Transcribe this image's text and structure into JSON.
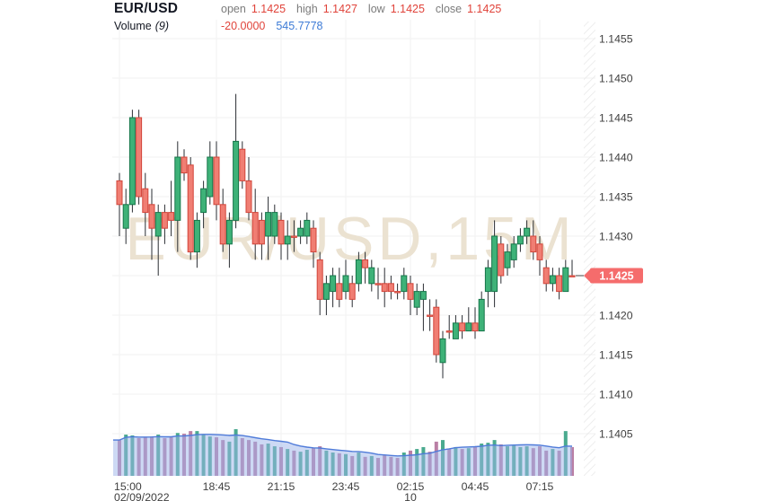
{
  "header": {
    "symbol": "EUR/USD",
    "labels": {
      "open": "open",
      "high": "high",
      "low": "low",
      "close": "close"
    },
    "open": "1.1425",
    "high": "1.1427",
    "low": "1.1425",
    "close": "1.1425",
    "indicator": "Volume",
    "indicator_param": "(9)",
    "indicator_value_1": "-20.0000",
    "indicator_value_2": "545.7778"
  },
  "watermark": "EUR/USD,15M",
  "colors": {
    "up_fill": "#3eb278",
    "up_stroke": "#17754a",
    "down_fill": "#f07e73",
    "down_stroke": "#d2453a",
    "wick": "#2a2e33",
    "vol_up": "#36a183",
    "vol_down": "#b3719b",
    "ma_line": "#4f7bd9",
    "ma_fill": "rgba(156,180,233,0.5)",
    "badge_bg": "#f56c6c",
    "badge_text": "#ffffff",
    "grid": "#f2f2f2",
    "axis_text": "#3f3f3f",
    "watermark_color": "#ebe2d1",
    "hatch": "#e6e6e6",
    "value_red": "#e0433a",
    "value_blue": "#3d7bd6"
  },
  "chart_data": {
    "type": "candlestick",
    "symbol": "EUR/USD",
    "interval": "15M",
    "legend_note": "Volume (9) overlay with moving-average area",
    "grid": true,
    "ylim": [
      1.1405,
      1.1455
    ],
    "last_price": "1.1425",
    "last_price_value": 1.1425,
    "y_ticks": [
      {
        "value": 1.1455,
        "label": "1.1455"
      },
      {
        "value": 1.145,
        "label": "1.1450"
      },
      {
        "value": 1.1445,
        "label": "1.1445"
      },
      {
        "value": 1.144,
        "label": "1.1440"
      },
      {
        "value": 1.1435,
        "label": "1.1435"
      },
      {
        "value": 1.143,
        "label": "1.1430"
      },
      {
        "value": 1.1425,
        "label": "1.1425"
      },
      {
        "value": 1.142,
        "label": "1.1420"
      },
      {
        "value": 1.1415,
        "label": "1.1415"
      },
      {
        "value": 1.141,
        "label": "1.1410"
      },
      {
        "value": 1.1405,
        "label": "1.1405"
      }
    ],
    "x_ticks": [
      {
        "index": 0,
        "label": "15:00",
        "sub": "02/09/2022",
        "align": "start"
      },
      {
        "index": 15,
        "label": "18:45",
        "sub": "",
        "align": "middle"
      },
      {
        "index": 25,
        "label": "21:15",
        "sub": "",
        "align": "middle"
      },
      {
        "index": 35,
        "label": "23:45",
        "sub": "",
        "align": "middle"
      },
      {
        "index": 45,
        "label": "02:15",
        "sub": "10",
        "align": "middle"
      },
      {
        "index": 55,
        "label": "04:45",
        "sub": "",
        "align": "middle"
      },
      {
        "index": 65,
        "label": "07:15",
        "sub": "",
        "align": "middle"
      }
    ],
    "candles": [
      {
        "t": "15:00",
        "o": 1.1437,
        "h": 1.1438,
        "l": 1.143,
        "c": 1.1434,
        "v": 660
      },
      {
        "t": "15:15",
        "o": 1.1431,
        "h": 1.1436,
        "l": 1.1429,
        "c": 1.1434,
        "v": 760
      },
      {
        "t": "15:30",
        "o": 1.1434,
        "h": 1.1446,
        "l": 1.1433,
        "c": 1.1445,
        "v": 745
      },
      {
        "t": "15:45",
        "o": 1.1445,
        "h": 1.1446,
        "l": 1.1434,
        "c": 1.1435,
        "v": 695
      },
      {
        "t": "16:00",
        "o": 1.1436,
        "h": 1.1438,
        "l": 1.143,
        "c": 1.1433,
        "v": 710
      },
      {
        "t": "16:15",
        "o": 1.1434,
        "h": 1.1436,
        "l": 1.1427,
        "c": 1.1431,
        "v": 725
      },
      {
        "t": "16:30",
        "o": 1.143,
        "h": 1.1434,
        "l": 1.1425,
        "c": 1.1433,
        "v": 760
      },
      {
        "t": "16:45",
        "o": 1.1433,
        "h": 1.1434,
        "l": 1.1429,
        "c": 1.1431,
        "v": 695
      },
      {
        "t": "17:00",
        "o": 1.1433,
        "h": 1.1437,
        "l": 1.143,
        "c": 1.1432,
        "v": 725
      },
      {
        "t": "17:15",
        "o": 1.1432,
        "h": 1.1442,
        "l": 1.1428,
        "c": 1.144,
        "v": 790
      },
      {
        "t": "17:30",
        "o": 1.144,
        "h": 1.1441,
        "l": 1.1437,
        "c": 1.1438,
        "v": 775
      },
      {
        "t": "17:45",
        "o": 1.1439,
        "h": 1.144,
        "l": 1.1427,
        "c": 1.1428,
        "v": 825
      },
      {
        "t": "18:00",
        "o": 1.1428,
        "h": 1.1433,
        "l": 1.1426,
        "c": 1.1432,
        "v": 825
      },
      {
        "t": "18:15",
        "o": 1.1433,
        "h": 1.1437,
        "l": 1.1431,
        "c": 1.1436,
        "v": 760
      },
      {
        "t": "18:30",
        "o": 1.1435,
        "h": 1.1442,
        "l": 1.1434,
        "c": 1.144,
        "v": 725
      },
      {
        "t": "18:45",
        "o": 1.144,
        "h": 1.1442,
        "l": 1.1432,
        "c": 1.1434,
        "v": 710
      },
      {
        "t": "19:00",
        "o": 1.1434,
        "h": 1.1436,
        "l": 1.1428,
        "c": 1.1429,
        "v": 660
      },
      {
        "t": "19:15",
        "o": 1.1429,
        "h": 1.1433,
        "l": 1.1426,
        "c": 1.1432,
        "v": 630
      },
      {
        "t": "19:30",
        "o": 1.1432,
        "h": 1.1448,
        "l": 1.1431,
        "c": 1.1442,
        "v": 860
      },
      {
        "t": "19:45",
        "o": 1.1441,
        "h": 1.1442,
        "l": 1.1436,
        "c": 1.1437,
        "v": 695
      },
      {
        "t": "20:00",
        "o": 1.1437,
        "h": 1.144,
        "l": 1.1432,
        "c": 1.1433,
        "v": 660
      },
      {
        "t": "20:15",
        "o": 1.1433,
        "h": 1.1436,
        "l": 1.1427,
        "c": 1.1429,
        "v": 630
      },
      {
        "t": "20:30",
        "o": 1.1432,
        "h": 1.1433,
        "l": 1.1427,
        "c": 1.1429,
        "v": 580
      },
      {
        "t": "20:45",
        "o": 1.143,
        "h": 1.1435,
        "l": 1.1427,
        "c": 1.1433,
        "v": 595
      },
      {
        "t": "21:00",
        "o": 1.143,
        "h": 1.1434,
        "l": 1.1429,
        "c": 1.1433,
        "v": 545
      },
      {
        "t": "21:15",
        "o": 1.1432,
        "h": 1.1433,
        "l": 1.1427,
        "c": 1.1429,
        "v": 530
      },
      {
        "t": "21:30",
        "o": 1.1429,
        "h": 1.1432,
        "l": 1.1427,
        "c": 1.143,
        "v": 495
      },
      {
        "t": "21:45",
        "o": 1.143,
        "h": 1.1432,
        "l": 1.1428,
        "c": 1.143,
        "v": 465
      },
      {
        "t": "22:00",
        "o": 1.143,
        "h": 1.1432,
        "l": 1.1429,
        "c": 1.1431,
        "v": 445
      },
      {
        "t": "22:15",
        "o": 1.143,
        "h": 1.1433,
        "l": 1.1429,
        "c": 1.1432,
        "v": 480
      },
      {
        "t": "22:30",
        "o": 1.1431,
        "h": 1.1432,
        "l": 1.1426,
        "c": 1.1428,
        "v": 510
      },
      {
        "t": "22:45",
        "o": 1.1427,
        "h": 1.1428,
        "l": 1.142,
        "c": 1.1422,
        "v": 545
      },
      {
        "t": "23:00",
        "o": 1.1422,
        "h": 1.1425,
        "l": 1.142,
        "c": 1.1424,
        "v": 465
      },
      {
        "t": "23:15",
        "o": 1.1423,
        "h": 1.1426,
        "l": 1.1421,
        "c": 1.1425,
        "v": 430
      },
      {
        "t": "23:30",
        "o": 1.1424,
        "h": 1.1426,
        "l": 1.1421,
        "c": 1.1422,
        "v": 415
      },
      {
        "t": "23:45",
        "o": 1.1423,
        "h": 1.1427,
        "l": 1.1422,
        "c": 1.1425,
        "v": 400
      },
      {
        "t": "00:00",
        "o": 1.1424,
        "h": 1.1425,
        "l": 1.1421,
        "c": 1.1422,
        "v": 365
      },
      {
        "t": "00:15",
        "o": 1.1424,
        "h": 1.1428,
        "l": 1.1423,
        "c": 1.1427,
        "v": 430
      },
      {
        "t": "00:30",
        "o": 1.1427,
        "h": 1.1428,
        "l": 1.1424,
        "c": 1.1426,
        "v": 350
      },
      {
        "t": "00:45",
        "o": 1.1424,
        "h": 1.1427,
        "l": 1.1423,
        "c": 1.1426,
        "v": 365
      },
      {
        "t": "01:00",
        "o": 1.1424,
        "h": 1.1426,
        "l": 1.1422,
        "c": 1.1424,
        "v": 330
      },
      {
        "t": "01:15",
        "o": 1.1424,
        "h": 1.1426,
        "l": 1.1421,
        "c": 1.1423,
        "v": 380
      },
      {
        "t": "01:30",
        "o": 1.1424,
        "h": 1.1425,
        "l": 1.1422,
        "c": 1.1423,
        "v": 350
      },
      {
        "t": "01:45",
        "o": 1.1423,
        "h": 1.1424,
        "l": 1.1422,
        "c": 1.1423,
        "v": 330
      },
      {
        "t": "02:00",
        "o": 1.1423,
        "h": 1.1426,
        "l": 1.1422,
        "c": 1.1425,
        "v": 430
      },
      {
        "t": "02:15",
        "o": 1.1424,
        "h": 1.1425,
        "l": 1.142,
        "c": 1.1422,
        "v": 465
      },
      {
        "t": "02:30",
        "o": 1.1421,
        "h": 1.1424,
        "l": 1.142,
        "c": 1.1423,
        "v": 495
      },
      {
        "t": "02:45",
        "o": 1.1422,
        "h": 1.1424,
        "l": 1.1418,
        "c": 1.1423,
        "v": 530
      },
      {
        "t": "03:00",
        "o": 1.142,
        "h": 1.1422,
        "l": 1.1418,
        "c": 1.142,
        "v": 445
      },
      {
        "t": "03:15",
        "o": 1.1421,
        "h": 1.1422,
        "l": 1.1414,
        "c": 1.1415,
        "v": 630
      },
      {
        "t": "03:30",
        "o": 1.1414,
        "h": 1.1418,
        "l": 1.1412,
        "c": 1.1417,
        "v": 660
      },
      {
        "t": "03:45",
        "o": 1.1418,
        "h": 1.142,
        "l": 1.1417,
        "c": 1.1418,
        "v": 495
      },
      {
        "t": "04:00",
        "o": 1.1417,
        "h": 1.142,
        "l": 1.1417,
        "c": 1.1419,
        "v": 530
      },
      {
        "t": "04:15",
        "o": 1.1419,
        "h": 1.142,
        "l": 1.1417,
        "c": 1.1418,
        "v": 495
      },
      {
        "t": "04:30",
        "o": 1.1418,
        "h": 1.1421,
        "l": 1.1418,
        "c": 1.1419,
        "v": 510
      },
      {
        "t": "04:45",
        "o": 1.1419,
        "h": 1.1421,
        "l": 1.1417,
        "c": 1.1418,
        "v": 545
      },
      {
        "t": "05:00",
        "o": 1.1418,
        "h": 1.1423,
        "l": 1.1418,
        "c": 1.1422,
        "v": 595
      },
      {
        "t": "05:15",
        "o": 1.1423,
        "h": 1.1427,
        "l": 1.1421,
        "c": 1.1426,
        "v": 610
      },
      {
        "t": "05:30",
        "o": 1.1423,
        "h": 1.1432,
        "l": 1.1421,
        "c": 1.143,
        "v": 660
      },
      {
        "t": "05:45",
        "o": 1.1429,
        "h": 1.143,
        "l": 1.1424,
        "c": 1.1425,
        "v": 580
      },
      {
        "t": "06:00",
        "o": 1.1426,
        "h": 1.1429,
        "l": 1.1425,
        "c": 1.1428,
        "v": 545
      },
      {
        "t": "06:15",
        "o": 1.1427,
        "h": 1.143,
        "l": 1.1426,
        "c": 1.1429,
        "v": 560
      },
      {
        "t": "06:30",
        "o": 1.1429,
        "h": 1.1431,
        "l": 1.1428,
        "c": 1.143,
        "v": 530
      },
      {
        "t": "06:45",
        "o": 1.143,
        "h": 1.1432,
        "l": 1.1429,
        "c": 1.1431,
        "v": 545
      },
      {
        "t": "07:00",
        "o": 1.143,
        "h": 1.1432,
        "l": 1.1427,
        "c": 1.1428,
        "v": 510
      },
      {
        "t": "07:15",
        "o": 1.1429,
        "h": 1.143,
        "l": 1.1425,
        "c": 1.1427,
        "v": 545
      },
      {
        "t": "07:30",
        "o": 1.1426,
        "h": 1.1427,
        "l": 1.1423,
        "c": 1.1424,
        "v": 465
      },
      {
        "t": "07:45",
        "o": 1.1424,
        "h": 1.1426,
        "l": 1.1423,
        "c": 1.1425,
        "v": 495
      },
      {
        "t": "08:00",
        "o": 1.1425,
        "h": 1.1426,
        "l": 1.1422,
        "c": 1.1423,
        "v": 465
      },
      {
        "t": "08:15",
        "o": 1.1423,
        "h": 1.1427,
        "l": 1.1423,
        "c": 1.1426,
        "v": 825
      },
      {
        "t": "08:30",
        "o": 1.1425,
        "h": 1.1427,
        "l": 1.1425,
        "c": 1.1425,
        "v": 530
      }
    ]
  }
}
